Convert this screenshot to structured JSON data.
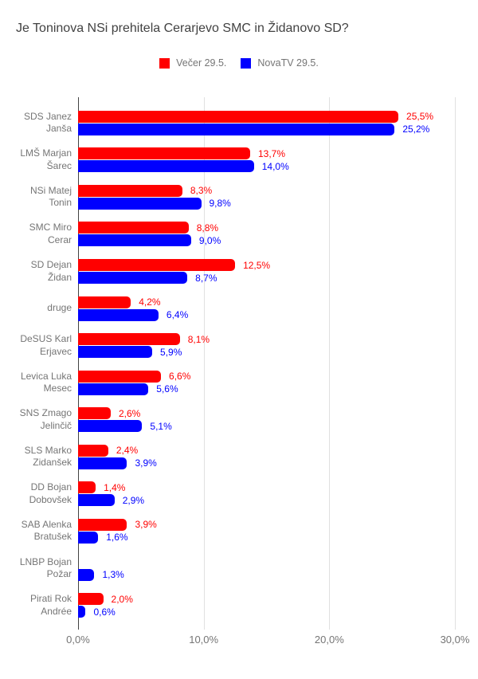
{
  "chart_data": {
    "type": "bar",
    "orientation": "horizontal",
    "title": "Je Toninova NSi prehitela Cerarjevo SMC in Židanovo SD?",
    "legend": [
      {
        "name": "Večer 29.5.",
        "color": "#ff0000"
      },
      {
        "name": "NovaTV 29.5.",
        "color": "#0000ff"
      }
    ],
    "legend_position": "top-center",
    "grid": true,
    "x_axis": {
      "ticks": [
        "0,0%",
        "10,0%",
        "20,0%",
        "30,0%"
      ],
      "min": 0,
      "max": 30
    },
    "series_keys": [
      "vecer",
      "novatv"
    ],
    "categories": [
      {
        "label_lines": [
          "SDS Janez",
          "Janša"
        ],
        "vecer": 25.5,
        "vecer_label": "25,5%",
        "novatv": 25.2,
        "novatv_label": "25,2%"
      },
      {
        "label_lines": [
          "LMŠ Marjan",
          "Šarec"
        ],
        "vecer": 13.7,
        "vecer_label": "13,7%",
        "novatv": 14.0,
        "novatv_label": "14,0%"
      },
      {
        "label_lines": [
          "NSi Matej",
          "Tonin"
        ],
        "vecer": 8.3,
        "vecer_label": "8,3%",
        "novatv": 9.8,
        "novatv_label": "9,8%"
      },
      {
        "label_lines": [
          "SMC Miro",
          "Cerar"
        ],
        "vecer": 8.8,
        "vecer_label": "8,8%",
        "novatv": 9.0,
        "novatv_label": "9,0%"
      },
      {
        "label_lines": [
          "SD Dejan",
          "Židan"
        ],
        "vecer": 12.5,
        "vecer_label": "12,5%",
        "novatv": 8.7,
        "novatv_label": "8,7%"
      },
      {
        "label_lines": [
          "druge"
        ],
        "vecer": 4.2,
        "vecer_label": "4,2%",
        "novatv": 6.4,
        "novatv_label": "6,4%"
      },
      {
        "label_lines": [
          "DeSUS Karl",
          "Erjavec"
        ],
        "vecer": 8.1,
        "vecer_label": "8,1%",
        "novatv": 5.9,
        "novatv_label": "5,9%"
      },
      {
        "label_lines": [
          "Levica Luka",
          "Mesec"
        ],
        "vecer": 6.6,
        "vecer_label": "6,6%",
        "novatv": 5.6,
        "novatv_label": "5,6%"
      },
      {
        "label_lines": [
          "SNS Zmago",
          "Jelinčič"
        ],
        "vecer": 2.6,
        "vecer_label": "2,6%",
        "novatv": 5.1,
        "novatv_label": "5,1%"
      },
      {
        "label_lines": [
          "SLS Marko",
          "Zidanšek"
        ],
        "vecer": 2.4,
        "vecer_label": "2,4%",
        "novatv": 3.9,
        "novatv_label": "3,9%"
      },
      {
        "label_lines": [
          "DD Bojan",
          "Dobovšek"
        ],
        "vecer": 1.4,
        "vecer_label": "1,4%",
        "novatv": 2.9,
        "novatv_label": "2,9%"
      },
      {
        "label_lines": [
          "SAB Alenka",
          "Bratušek"
        ],
        "vecer": 3.9,
        "vecer_label": "3,9%",
        "novatv": 1.6,
        "novatv_label": "1,6%"
      },
      {
        "label_lines": [
          "LNBP Bojan",
          "Požar"
        ],
        "vecer": null,
        "vecer_label": "",
        "novatv": 1.3,
        "novatv_label": "1,3%"
      },
      {
        "label_lines": [
          "Pirati Rok",
          "Andrée"
        ],
        "vecer": 2.0,
        "vecer_label": "2,0%",
        "novatv": 0.6,
        "novatv_label": "0,6%"
      }
    ]
  }
}
